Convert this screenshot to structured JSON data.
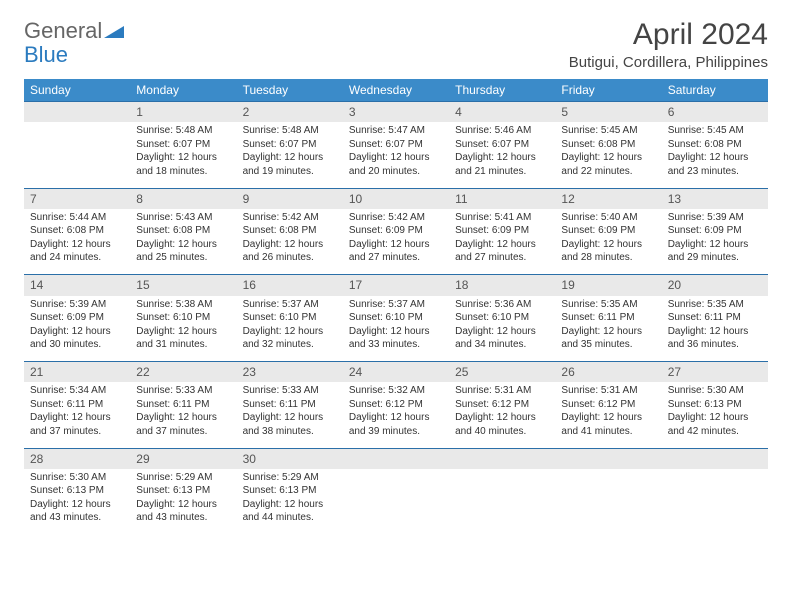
{
  "logo": {
    "general": "General",
    "blue": "Blue"
  },
  "title": "April 2024",
  "location": "Butigui, Cordillera, Philippines",
  "colors": {
    "header_bg": "#3b8bc9",
    "header_text": "#ffffff",
    "daynum_bg": "#e9e9e9",
    "row_border": "#2b6fa8",
    "body_text": "#333333",
    "title_text": "#444444",
    "logo_gray": "#666666",
    "logo_blue": "#2b7bbf"
  },
  "typography": {
    "title_fontsize": 30,
    "location_fontsize": 15,
    "header_fontsize": 12,
    "daynum_fontsize": 12,
    "cell_fontsize": 10
  },
  "weekdays": [
    "Sunday",
    "Monday",
    "Tuesday",
    "Wednesday",
    "Thursday",
    "Friday",
    "Saturday"
  ],
  "weeks": [
    {
      "nums": [
        "",
        "1",
        "2",
        "3",
        "4",
        "5",
        "6"
      ],
      "cells": [
        {
          "empty": true
        },
        {
          "sunrise": "Sunrise: 5:48 AM",
          "sunset": "Sunset: 6:07 PM",
          "day1": "Daylight: 12 hours",
          "day2": "and 18 minutes."
        },
        {
          "sunrise": "Sunrise: 5:48 AM",
          "sunset": "Sunset: 6:07 PM",
          "day1": "Daylight: 12 hours",
          "day2": "and 19 minutes."
        },
        {
          "sunrise": "Sunrise: 5:47 AM",
          "sunset": "Sunset: 6:07 PM",
          "day1": "Daylight: 12 hours",
          "day2": "and 20 minutes."
        },
        {
          "sunrise": "Sunrise: 5:46 AM",
          "sunset": "Sunset: 6:07 PM",
          "day1": "Daylight: 12 hours",
          "day2": "and 21 minutes."
        },
        {
          "sunrise": "Sunrise: 5:45 AM",
          "sunset": "Sunset: 6:08 PM",
          "day1": "Daylight: 12 hours",
          "day2": "and 22 minutes."
        },
        {
          "sunrise": "Sunrise: 5:45 AM",
          "sunset": "Sunset: 6:08 PM",
          "day1": "Daylight: 12 hours",
          "day2": "and 23 minutes."
        }
      ]
    },
    {
      "nums": [
        "7",
        "8",
        "9",
        "10",
        "11",
        "12",
        "13"
      ],
      "cells": [
        {
          "sunrise": "Sunrise: 5:44 AM",
          "sunset": "Sunset: 6:08 PM",
          "day1": "Daylight: 12 hours",
          "day2": "and 24 minutes."
        },
        {
          "sunrise": "Sunrise: 5:43 AM",
          "sunset": "Sunset: 6:08 PM",
          "day1": "Daylight: 12 hours",
          "day2": "and 25 minutes."
        },
        {
          "sunrise": "Sunrise: 5:42 AM",
          "sunset": "Sunset: 6:08 PM",
          "day1": "Daylight: 12 hours",
          "day2": "and 26 minutes."
        },
        {
          "sunrise": "Sunrise: 5:42 AM",
          "sunset": "Sunset: 6:09 PM",
          "day1": "Daylight: 12 hours",
          "day2": "and 27 minutes."
        },
        {
          "sunrise": "Sunrise: 5:41 AM",
          "sunset": "Sunset: 6:09 PM",
          "day1": "Daylight: 12 hours",
          "day2": "and 27 minutes."
        },
        {
          "sunrise": "Sunrise: 5:40 AM",
          "sunset": "Sunset: 6:09 PM",
          "day1": "Daylight: 12 hours",
          "day2": "and 28 minutes."
        },
        {
          "sunrise": "Sunrise: 5:39 AM",
          "sunset": "Sunset: 6:09 PM",
          "day1": "Daylight: 12 hours",
          "day2": "and 29 minutes."
        }
      ]
    },
    {
      "nums": [
        "14",
        "15",
        "16",
        "17",
        "18",
        "19",
        "20"
      ],
      "cells": [
        {
          "sunrise": "Sunrise: 5:39 AM",
          "sunset": "Sunset: 6:09 PM",
          "day1": "Daylight: 12 hours",
          "day2": "and 30 minutes."
        },
        {
          "sunrise": "Sunrise: 5:38 AM",
          "sunset": "Sunset: 6:10 PM",
          "day1": "Daylight: 12 hours",
          "day2": "and 31 minutes."
        },
        {
          "sunrise": "Sunrise: 5:37 AM",
          "sunset": "Sunset: 6:10 PM",
          "day1": "Daylight: 12 hours",
          "day2": "and 32 minutes."
        },
        {
          "sunrise": "Sunrise: 5:37 AM",
          "sunset": "Sunset: 6:10 PM",
          "day1": "Daylight: 12 hours",
          "day2": "and 33 minutes."
        },
        {
          "sunrise": "Sunrise: 5:36 AM",
          "sunset": "Sunset: 6:10 PM",
          "day1": "Daylight: 12 hours",
          "day2": "and 34 minutes."
        },
        {
          "sunrise": "Sunrise: 5:35 AM",
          "sunset": "Sunset: 6:11 PM",
          "day1": "Daylight: 12 hours",
          "day2": "and 35 minutes."
        },
        {
          "sunrise": "Sunrise: 5:35 AM",
          "sunset": "Sunset: 6:11 PM",
          "day1": "Daylight: 12 hours",
          "day2": "and 36 minutes."
        }
      ]
    },
    {
      "nums": [
        "21",
        "22",
        "23",
        "24",
        "25",
        "26",
        "27"
      ],
      "cells": [
        {
          "sunrise": "Sunrise: 5:34 AM",
          "sunset": "Sunset: 6:11 PM",
          "day1": "Daylight: 12 hours",
          "day2": "and 37 minutes."
        },
        {
          "sunrise": "Sunrise: 5:33 AM",
          "sunset": "Sunset: 6:11 PM",
          "day1": "Daylight: 12 hours",
          "day2": "and 37 minutes."
        },
        {
          "sunrise": "Sunrise: 5:33 AM",
          "sunset": "Sunset: 6:11 PM",
          "day1": "Daylight: 12 hours",
          "day2": "and 38 minutes."
        },
        {
          "sunrise": "Sunrise: 5:32 AM",
          "sunset": "Sunset: 6:12 PM",
          "day1": "Daylight: 12 hours",
          "day2": "and 39 minutes."
        },
        {
          "sunrise": "Sunrise: 5:31 AM",
          "sunset": "Sunset: 6:12 PM",
          "day1": "Daylight: 12 hours",
          "day2": "and 40 minutes."
        },
        {
          "sunrise": "Sunrise: 5:31 AM",
          "sunset": "Sunset: 6:12 PM",
          "day1": "Daylight: 12 hours",
          "day2": "and 41 minutes."
        },
        {
          "sunrise": "Sunrise: 5:30 AM",
          "sunset": "Sunset: 6:13 PM",
          "day1": "Daylight: 12 hours",
          "day2": "and 42 minutes."
        }
      ]
    },
    {
      "nums": [
        "28",
        "29",
        "30",
        "",
        "",
        "",
        ""
      ],
      "cells": [
        {
          "sunrise": "Sunrise: 5:30 AM",
          "sunset": "Sunset: 6:13 PM",
          "day1": "Daylight: 12 hours",
          "day2": "and 43 minutes."
        },
        {
          "sunrise": "Sunrise: 5:29 AM",
          "sunset": "Sunset: 6:13 PM",
          "day1": "Daylight: 12 hours",
          "day2": "and 43 minutes."
        },
        {
          "sunrise": "Sunrise: 5:29 AM",
          "sunset": "Sunset: 6:13 PM",
          "day1": "Daylight: 12 hours",
          "day2": "and 44 minutes."
        },
        {
          "empty": true
        },
        {
          "empty": true
        },
        {
          "empty": true
        },
        {
          "empty": true
        }
      ]
    }
  ]
}
